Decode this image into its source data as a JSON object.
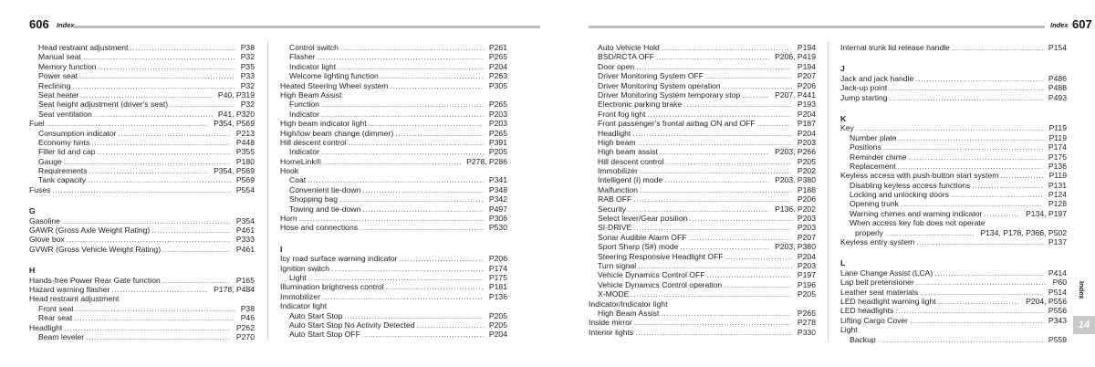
{
  "left_page": {
    "number": "606",
    "title": "Index"
  },
  "right_page": {
    "number": "607",
    "title": "Index"
  },
  "side_tab": {
    "label": "Index",
    "chapter": "14"
  },
  "columns": [
    [
      {
        "t": "Head restraint adjustment",
        "p": "P38",
        "l": 1
      },
      {
        "t": "Manual seat",
        "p": "P32",
        "l": 1
      },
      {
        "t": "Memory function",
        "p": "P35",
        "l": 1
      },
      {
        "t": "Power seat",
        "p": "P33",
        "l": 1
      },
      {
        "t": "Reclining",
        "p": "P32",
        "l": 1
      },
      {
        "t": "Seat heater",
        "p": "P40, P319",
        "l": 1
      },
      {
        "t": "Seat height adjustment (driver's seat)",
        "p": "P32",
        "l": 1
      },
      {
        "t": "Seat ventilation",
        "p": "P41, P320",
        "l": 1
      },
      {
        "t": "Fuel",
        "p": "P354, P569",
        "l": 0
      },
      {
        "t": "Consumption indicator",
        "p": "P213",
        "l": 1
      },
      {
        "t": "Economy hints",
        "p": "P448",
        "l": 1
      },
      {
        "t": "Filler lid and cap",
        "p": "P355",
        "l": 1
      },
      {
        "t": "Gauge",
        "p": "P180",
        "l": 1
      },
      {
        "t": "Requirements",
        "p": "P354, P569",
        "l": 1
      },
      {
        "t": "Tank capacity",
        "p": "P569",
        "l": 1
      },
      {
        "t": "Fuses",
        "p": "P554",
        "l": 0
      },
      {
        "sec": "G"
      },
      {
        "t": "Gasoline",
        "p": "P354",
        "l": 0
      },
      {
        "t": "GAWR (Gross Axle Weight Rating)",
        "p": "P461",
        "l": 0
      },
      {
        "t": "Glove box",
        "p": "P333",
        "l": 0
      },
      {
        "t": "GVWR (Gross Vehicle Weight Rating)",
        "p": "P461",
        "l": 0
      },
      {
        "sec": "H"
      },
      {
        "t": "Hands-free Power Rear Gate function",
        "p": "P165",
        "l": 0
      },
      {
        "t": "Hazard warning flasher",
        "p": "P178, P484",
        "l": 0
      },
      {
        "t": "Head restraint adjustment",
        "p": "",
        "l": 0
      },
      {
        "t": "Front seat",
        "p": "P38",
        "l": 1
      },
      {
        "t": "Rear seat",
        "p": "P46",
        "l": 1
      },
      {
        "t": "Headlight",
        "p": "P262",
        "l": 0
      },
      {
        "t": "Beam leveler",
        "p": "P270",
        "l": 1
      }
    ],
    [
      {
        "t": "Control switch",
        "p": "P261",
        "l": 1
      },
      {
        "t": "Flasher",
        "p": "P265",
        "l": 1
      },
      {
        "t": "Indicator light",
        "p": "P204",
        "l": 1
      },
      {
        "t": "Welcome lighting function",
        "p": "P263",
        "l": 1
      },
      {
        "t": "Heated Steering Wheel system",
        "p": "P305",
        "l": 0
      },
      {
        "t": "High Beam Assist",
        "p": "",
        "l": 0
      },
      {
        "t": "Function",
        "p": "P265",
        "l": 1
      },
      {
        "t": "Indicator",
        "p": "P203",
        "l": 1
      },
      {
        "t": "High beam indicator light",
        "p": "P203",
        "l": 0
      },
      {
        "t": "High/low beam change (dimmer)",
        "p": "P265",
        "l": 0
      },
      {
        "t": "Hill descent control",
        "p": "P391",
        "l": 0
      },
      {
        "t": "Indicator",
        "p": "P205",
        "l": 1
      },
      {
        "t": "HomeLink®",
        "p": "P278, P286",
        "l": 0
      },
      {
        "t": "Hook",
        "p": "",
        "l": 0
      },
      {
        "t": "Coat",
        "p": "P341",
        "l": 1
      },
      {
        "t": "Convenient tie-down",
        "p": "P348",
        "l": 1
      },
      {
        "t": "Shopping bag",
        "p": "P342",
        "l": 1
      },
      {
        "t": "Towing and tie-down",
        "p": "P497",
        "l": 1
      },
      {
        "t": "Horn",
        "p": "P306",
        "l": 0
      },
      {
        "t": "Hose and connections",
        "p": "P530",
        "l": 0
      },
      {
        "sec": "I"
      },
      {
        "t": "Icy road surface warning indicator",
        "p": "P206",
        "l": 0
      },
      {
        "t": "Ignition switch",
        "p": "P174",
        "l": 0
      },
      {
        "t": "Light",
        "p": "P175",
        "l": 1
      },
      {
        "t": "Illumination brightness control",
        "p": "P181",
        "l": 0
      },
      {
        "t": "Immobilizer",
        "p": "P136",
        "l": 0
      },
      {
        "t": "Indicator light",
        "p": "",
        "l": 0
      },
      {
        "t": "Auto Start Stop",
        "p": "P205",
        "l": 1
      },
      {
        "t": "Auto Start Stop No Activity Detected",
        "p": "P205",
        "l": 1
      },
      {
        "t": "Auto Start Stop OFF",
        "p": "P204",
        "l": 1
      }
    ],
    [
      {
        "t": "Auto Vehicle Hold",
        "p": "P194",
        "l": 1
      },
      {
        "t": "BSD/RCTA OFF",
        "p": "P206, P419",
        "l": 1
      },
      {
        "t": "Door open",
        "p": "P194",
        "l": 1
      },
      {
        "t": "Driver Monitoring System OFF",
        "p": "P207",
        "l": 1
      },
      {
        "t": "Driver Monitoring System operation",
        "p": "P206",
        "l": 1
      },
      {
        "t": "Driver Monitoring System temporary stop",
        "p": "P207, P441",
        "l": 1
      },
      {
        "t": "Electronic parking brake",
        "p": "P193",
        "l": 1
      },
      {
        "t": "Front fog light",
        "p": "P204",
        "l": 1
      },
      {
        "t": "Front passenger's frontal airbag ON and OFF",
        "p": "P187",
        "l": 1
      },
      {
        "t": "Headlight",
        "p": "P204",
        "l": 1
      },
      {
        "t": "High beam",
        "p": "P203",
        "l": 1
      },
      {
        "t": "High beam assist",
        "p": "P203, P266",
        "l": 1
      },
      {
        "t": "Hill descent control",
        "p": "P205",
        "l": 1
      },
      {
        "t": "Immobilizer",
        "p": "P202",
        "l": 1
      },
      {
        "t": "Intelligent (I) mode",
        "p": "P203, P380",
        "l": 1
      },
      {
        "t": "Malfunction",
        "p": "P188",
        "l": 1
      },
      {
        "t": "RAB OFF",
        "p": "P206",
        "l": 1
      },
      {
        "t": "Security",
        "p": "P136, P202",
        "l": 1
      },
      {
        "t": "Select lever/Gear position",
        "p": "P203",
        "l": 1
      },
      {
        "t": "SI-DRIVE",
        "p": "P203",
        "l": 1
      },
      {
        "t": "Sonar Audible Alarm OFF",
        "p": "P207",
        "l": 1
      },
      {
        "t": "Sport Sharp (S#) mode",
        "p": "P203, P380",
        "l": 1
      },
      {
        "t": "Steering Responsive Headlight OFF",
        "p": "P204",
        "l": 1
      },
      {
        "t": "Turn signal",
        "p": "P203",
        "l": 1
      },
      {
        "t": "Vehicle Dynamics Control OFF",
        "p": "P197",
        "l": 1
      },
      {
        "t": "Vehicle Dynamics Control operation",
        "p": "P196",
        "l": 1
      },
      {
        "t": "X-MODE",
        "p": "P205",
        "l": 1
      },
      {
        "t": "Indicator/Indicator light",
        "p": "",
        "l": 0
      },
      {
        "t": "High Beam Assist",
        "p": "P265",
        "l": 1
      },
      {
        "t": "Inside mirror",
        "p": "P278",
        "l": 0
      },
      {
        "t": "Interior lights",
        "p": "P330",
        "l": 0
      }
    ],
    [
      {
        "t": "Internal trunk lid release handle",
        "p": "P154",
        "l": 0
      },
      {
        "sec": "J"
      },
      {
        "t": "Jack and jack handle",
        "p": "P486",
        "l": 0
      },
      {
        "t": "Jack-up point",
        "p": "P488",
        "l": 0
      },
      {
        "t": "Jump starting",
        "p": "P493",
        "l": 0
      },
      {
        "sec": "K"
      },
      {
        "t": "Key",
        "p": "P119",
        "l": 0
      },
      {
        "t": "Number plate",
        "p": "P119",
        "l": 1
      },
      {
        "t": "Positions",
        "p": "P174",
        "l": 1
      },
      {
        "t": "Reminder chime",
        "p": "P175",
        "l": 1
      },
      {
        "t": "Replacement",
        "p": "P136",
        "l": 1
      },
      {
        "t": "Keyless access with push-button start system",
        "p": "P119",
        "l": 0
      },
      {
        "t": "Disabling keyless access functions",
        "p": "P131",
        "l": 1
      },
      {
        "t": "Locking and unlocking doors",
        "p": "P124",
        "l": 1
      },
      {
        "t": "Opening trunk",
        "p": "P128",
        "l": 1
      },
      {
        "t": "Warning chimes and warning indicator",
        "p": "P134, P197",
        "l": 1
      },
      {
        "t": "When access key fob does not operate",
        "p": "",
        "l": 1
      },
      {
        "t": "properly",
        "p": "P134, P178, P366, P502",
        "l": 2
      },
      {
        "t": "Keyless entry system",
        "p": "P137",
        "l": 0
      },
      {
        "sec": "L"
      },
      {
        "t": "Lane Change Assist (LCA)",
        "p": "P414",
        "l": 0
      },
      {
        "t": "Lap belt pretensioner",
        "p": "P60",
        "l": 0
      },
      {
        "t": "Leather seat materials",
        "p": "P514",
        "l": 0
      },
      {
        "t": "LED headlight warning light",
        "p": "P204, P556",
        "l": 0
      },
      {
        "t": "LED headlights",
        "p": "P556",
        "l": 0
      },
      {
        "t": "Lifting Cargo Cover",
        "p": "P343",
        "l": 0
      },
      {
        "t": "Light",
        "p": "",
        "l": 0
      },
      {
        "t": "Backup",
        "p": "P559",
        "l": 1
      }
    ]
  ]
}
